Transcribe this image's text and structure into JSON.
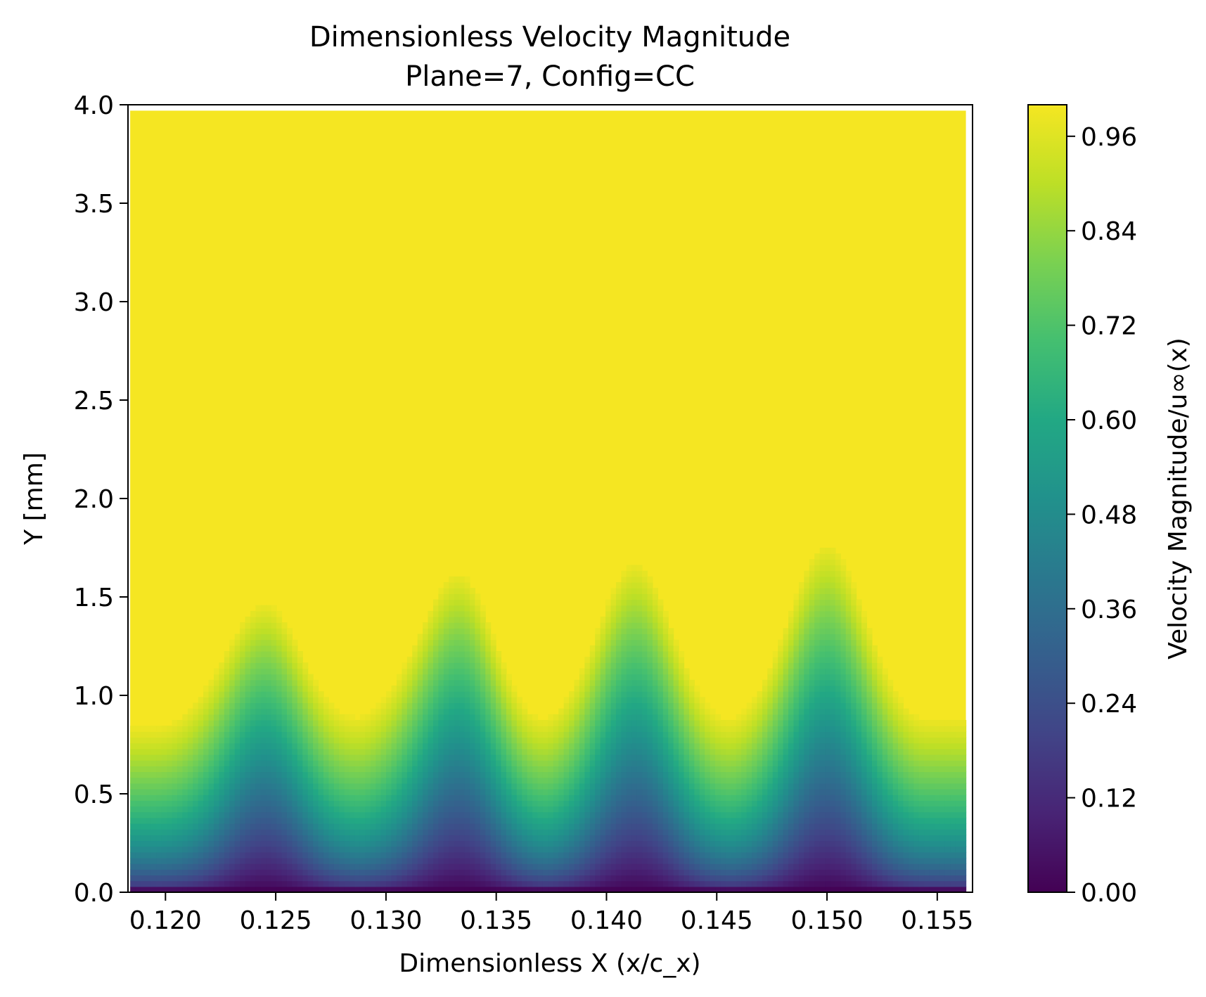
{
  "chart_data": {
    "type": "heatmap",
    "title": "Dimensionless Velocity Magnitude",
    "subtitle": "Plane=7, Config=CC",
    "xlabel": "Dimensionless X (x/c_x)",
    "ylabel": "Y [mm]",
    "colorbar_label": "Velocity Magnitude/u∞(x)",
    "colormap": "viridis",
    "xlim": [
      0.1183,
      0.1566
    ],
    "ylim": [
      0.0,
      4.0
    ],
    "x_ticks": [
      0.12,
      0.125,
      0.13,
      0.135,
      0.14,
      0.145,
      0.15,
      0.155
    ],
    "x_tick_labels": [
      "0.120",
      "0.125",
      "0.130",
      "0.135",
      "0.140",
      "0.145",
      "0.150",
      "0.155"
    ],
    "y_ticks": [
      0.0,
      0.5,
      1.0,
      1.5,
      2.0,
      2.5,
      3.0,
      3.5,
      4.0
    ],
    "y_tick_labels": [
      "0.0",
      "0.5",
      "1.0",
      "1.5",
      "2.0",
      "2.5",
      "3.0",
      "3.5",
      "4.0"
    ],
    "colorbar_range": [
      0.0,
      1.0
    ],
    "colorbar_ticks": [
      0.0,
      0.12,
      0.24,
      0.36,
      0.48,
      0.6,
      0.72,
      0.84,
      0.96
    ],
    "colorbar_tick_labels": [
      "0.00",
      "0.12",
      "0.24",
      "0.36",
      "0.48",
      "0.60",
      "0.72",
      "0.84",
      "0.96"
    ],
    "boundary_layer_crests": [
      {
        "x": 0.1245,
        "y_top": 1.52
      },
      {
        "x": 0.1333,
        "y_top": 1.68
      },
      {
        "x": 0.1413,
        "y_top": 1.73
      },
      {
        "x": 0.15,
        "y_top": 1.83
      }
    ],
    "boundary_layer_troughs": [
      {
        "x": 0.1195,
        "y_top": 1.1
      },
      {
        "x": 0.1285,
        "y_top": 1.16
      },
      {
        "x": 0.137,
        "y_top": 1.15
      },
      {
        "x": 0.1455,
        "y_top": 1.15
      },
      {
        "x": 0.1545,
        "y_top": 1.15
      }
    ],
    "data_top_y": 3.97,
    "data_left_x": 0.1184,
    "data_right_x": 0.1563
  }
}
